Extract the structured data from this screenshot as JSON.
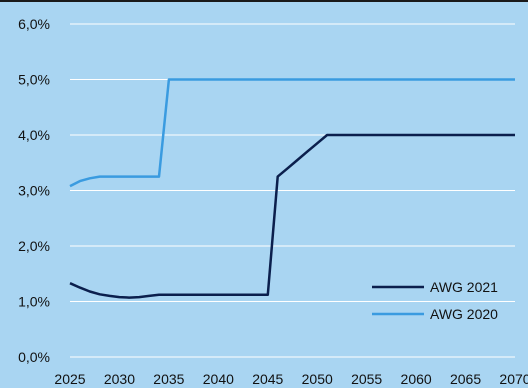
{
  "chart_data": {
    "type": "line",
    "title": "",
    "xlabel": "",
    "ylabel": "",
    "xlim": [
      2025,
      2070
    ],
    "ylim": [
      0,
      6
    ],
    "y_ticks": [
      "0,0%",
      "1,0%",
      "2,0%",
      "3,0%",
      "4,0%",
      "5,0%",
      "6,0%"
    ],
    "x_ticks": [
      "2025",
      "2030",
      "2035",
      "2040",
      "2045",
      "2050",
      "2055",
      "2060",
      "2065",
      "2070"
    ],
    "grid": true,
    "legend_placement": "bottom-right",
    "series": [
      {
        "name": "AWG 2021",
        "color": "#0b1f4d",
        "x": [
          2025,
          2026,
          2027,
          2028,
          2029,
          2030,
          2031,
          2032,
          2033,
          2034,
          2035,
          2040,
          2045,
          2046,
          2047,
          2048,
          2049,
          2050,
          2051,
          2055,
          2060,
          2065,
          2070
        ],
        "y": [
          1.33,
          1.25,
          1.18,
          1.13,
          1.1,
          1.08,
          1.07,
          1.08,
          1.1,
          1.12,
          1.12,
          1.12,
          1.12,
          3.25,
          3.4,
          3.55,
          3.7,
          3.85,
          4.0,
          4.0,
          4.0,
          4.0,
          4.0
        ]
      },
      {
        "name": "AWG 2020",
        "color": "#3a9be0",
        "x": [
          2025,
          2026,
          2027,
          2028,
          2029,
          2030,
          2031,
          2032,
          2033,
          2034,
          2035,
          2040,
          2045,
          2050,
          2055,
          2060,
          2065,
          2070
        ],
        "y": [
          3.08,
          3.17,
          3.22,
          3.25,
          3.25,
          3.25,
          3.25,
          3.25,
          3.25,
          3.25,
          5.0,
          5.0,
          5.0,
          5.0,
          5.0,
          5.0,
          5.0,
          5.0
        ]
      }
    ]
  }
}
